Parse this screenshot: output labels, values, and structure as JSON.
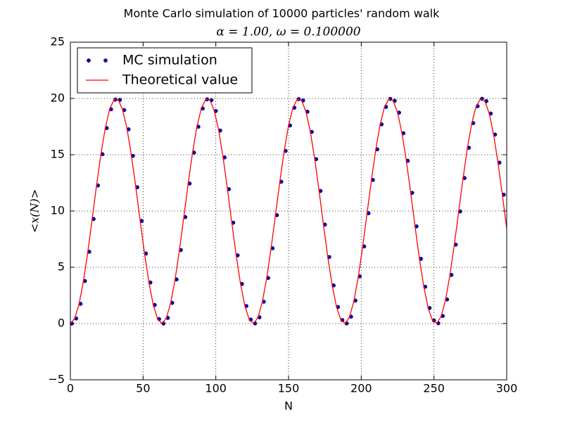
{
  "chart_data": {
    "type": "line",
    "title": "Monte Carlo simulation of 10000 particles' random walk",
    "subtitle": "α = 1.00, ω = 0.100000",
    "xlabel": "N",
    "ylabel": "<x(N)>",
    "xlim": [
      0,
      300
    ],
    "ylim": [
      -5,
      25
    ],
    "xticks": [
      0,
      50,
      100,
      150,
      200,
      250,
      300
    ],
    "yticks": [
      {
        "value": -5,
        "label": "−5"
      },
      0,
      5,
      10,
      15,
      20,
      25
    ],
    "grid": true,
    "legend": "upper left",
    "series": [
      {
        "name": "MC simulation",
        "color": "#0000cc",
        "style": "markers",
        "x": [
          1,
          4,
          7,
          10,
          13,
          16,
          19,
          22,
          25,
          28,
          31,
          34,
          37,
          40,
          43,
          46,
          49,
          52,
          55,
          58,
          61,
          64,
          67,
          70,
          73,
          76,
          79,
          82,
          85,
          88,
          91,
          94,
          97,
          100,
          103,
          106,
          109,
          112,
          115,
          118,
          121,
          124,
          127,
          130,
          133,
          136,
          139,
          142,
          145,
          148,
          151,
          154,
          157,
          160,
          163,
          166,
          169,
          172,
          175,
          178,
          181,
          184,
          187,
          190,
          193,
          196,
          199,
          202,
          205,
          208,
          211,
          214,
          217,
          220,
          223,
          226,
          229,
          232,
          235,
          238,
          241,
          244,
          247,
          250,
          253,
          256,
          259,
          262,
          265,
          268,
          271,
          274,
          277,
          280,
          283,
          286,
          289,
          292,
          295,
          298
        ],
        "values": [
          0,
          0.45,
          1.75,
          3.78,
          6.38,
          9.29,
          12.27,
          15.05,
          17.37,
          19.04,
          19.9,
          19.87,
          18.97,
          17.26,
          14.9,
          12.11,
          9.12,
          6.22,
          3.65,
          1.65,
          0.4,
          0,
          0.5,
          1.84,
          3.92,
          6.53,
          9.46,
          12.44,
          15.19,
          17.49,
          19.11,
          19.92,
          19.85,
          18.89,
          17.15,
          14.76,
          11.94,
          8.96,
          6.06,
          3.52,
          1.56,
          0.35,
          0.01,
          0.55,
          1.94,
          4.05,
          6.69,
          9.63,
          12.6,
          15.34,
          17.6,
          19.18,
          19.94,
          19.82,
          18.82,
          17.03,
          14.61,
          11.78,
          8.79,
          5.91,
          3.39,
          1.47,
          0.31,
          0.01,
          0.61,
          2.04,
          4.19,
          6.85,
          9.8,
          12.76,
          15.48,
          17.7,
          19.25,
          19.96,
          19.79,
          18.74,
          16.91,
          14.46,
          11.61,
          8.63,
          5.75,
          3.27,
          1.38,
          0.27,
          0.02,
          0.67,
          2.14,
          4.32,
          7.01,
          9.96,
          12.93,
          15.62,
          17.81,
          19.31,
          19.97,
          19.76,
          18.66,
          16.79,
          14.3,
          11.45
        ]
      },
      {
        "name": "Theoretical value",
        "color": "#ff0000",
        "style": "line",
        "x": [
          0,
          3,
          6,
          9,
          12,
          15,
          18,
          21,
          24,
          27,
          30,
          33,
          36,
          39,
          42,
          45,
          48,
          51,
          54,
          57,
          60,
          63,
          66,
          69,
          72,
          75,
          78,
          81,
          84,
          87,
          90,
          93,
          96,
          99,
          102,
          105,
          108,
          111,
          114,
          117,
          120,
          123,
          126,
          129,
          132,
          135,
          138,
          141,
          144,
          147,
          150,
          153,
          156,
          159,
          162,
          165,
          168,
          171,
          174,
          177,
          180,
          183,
          186,
          189,
          192,
          195,
          198,
          201,
          204,
          207,
          210,
          213,
          216,
          219,
          222,
          225,
          228,
          231,
          234,
          237,
          240,
          243,
          246,
          249,
          252,
          255,
          258,
          261,
          264,
          267,
          270,
          273,
          276,
          279,
          282,
          285,
          288,
          291,
          294,
          297,
          300
        ],
        "values": [
          0,
          0.45,
          1.75,
          3.78,
          6.38,
          9.29,
          12.27,
          15.05,
          17.37,
          19.04,
          19.9,
          19.87,
          18.97,
          17.26,
          14.9,
          12.11,
          9.12,
          6.22,
          3.65,
          1.65,
          0.4,
          0,
          0.5,
          1.84,
          3.92,
          6.53,
          9.46,
          12.44,
          15.19,
          17.49,
          19.11,
          19.92,
          19.85,
          18.89,
          17.15,
          14.76,
          11.94,
          8.96,
          6.06,
          3.52,
          1.56,
          0.35,
          0.01,
          0.55,
          1.94,
          4.05,
          6.69,
          9.63,
          12.6,
          15.34,
          17.6,
          19.18,
          19.94,
          19.82,
          18.82,
          17.03,
          14.61,
          11.78,
          8.79,
          5.91,
          3.39,
          1.47,
          0.31,
          0.01,
          0.61,
          2.04,
          4.19,
          6.85,
          9.8,
          12.76,
          15.48,
          17.7,
          19.25,
          19.96,
          19.79,
          18.74,
          16.91,
          14.46,
          11.61,
          8.63,
          5.75,
          3.27,
          1.38,
          0.27,
          0.02,
          0.67,
          2.14,
          4.32,
          7.01,
          9.96,
          12.93,
          15.62,
          17.81,
          19.31,
          19.97,
          19.76,
          18.66,
          16.79,
          14.3,
          11.45,
          8.46
        ]
      }
    ]
  }
}
